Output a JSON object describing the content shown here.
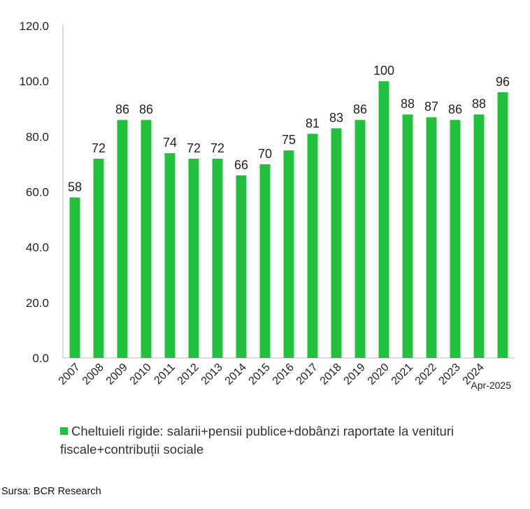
{
  "chart_data": {
    "type": "bar",
    "categories": [
      "2007",
      "2008",
      "2009",
      "2010",
      "2011",
      "2012",
      "2013",
      "2014",
      "2015",
      "2016",
      "2017",
      "2018",
      "2019",
      "2020",
      "2021",
      "2022",
      "2023",
      "2024",
      "Apr-2025"
    ],
    "series": [
      {
        "name": "Cheltuieli rigide: salarii+pensii publice+dobânzi raportate la venituri fiscale+contribuții sociale",
        "values": [
          58,
          72,
          86,
          86,
          74,
          72,
          72,
          66,
          70,
          75,
          81,
          83,
          86,
          100,
          88,
          87,
          86,
          88,
          96
        ],
        "color": "#22c03c"
      }
    ],
    "yticks": [
      "0.0",
      "20.0",
      "40.0",
      "60.0",
      "80.0",
      "100.0",
      "120.0"
    ],
    "ylim": [
      0,
      120
    ],
    "grid": false,
    "legend_position": "bottom",
    "title": "",
    "xlabel": "",
    "ylabel": ""
  },
  "source": "Sursa: BCR Research"
}
